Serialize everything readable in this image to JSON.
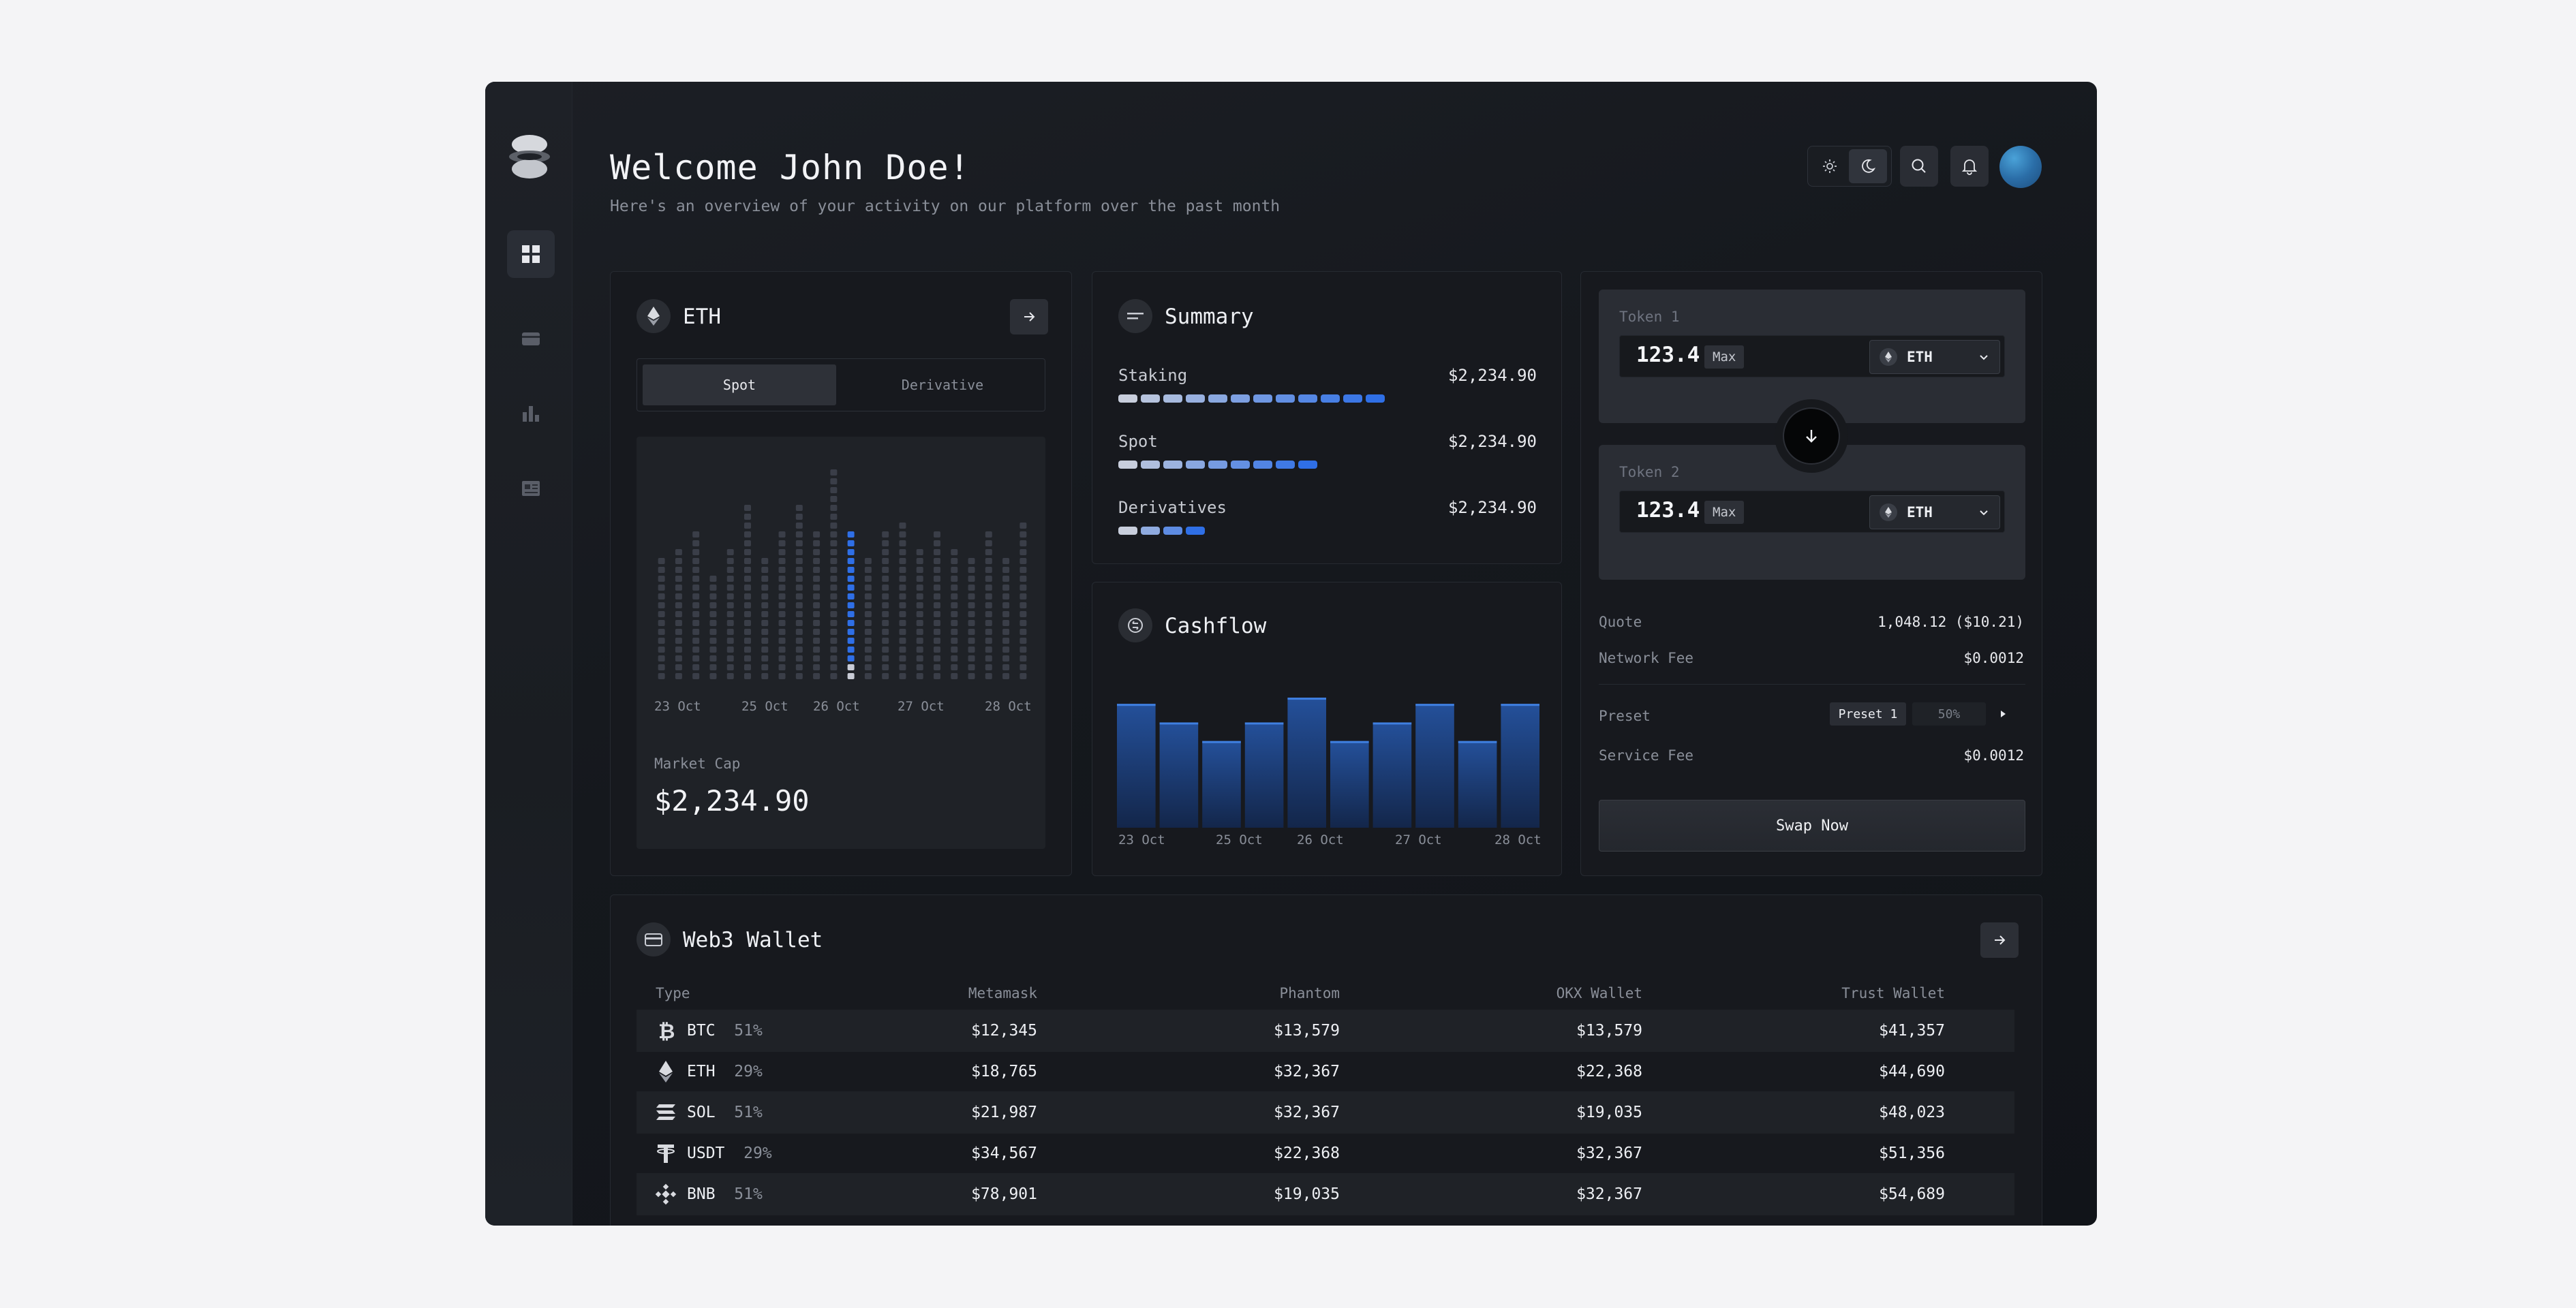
{
  "header": {
    "title": "Welcome John Doe!",
    "subtitle": "Here's an overview of your activity on our platform over the past month"
  },
  "sidebar": {
    "items": [
      {
        "icon": "dashboard-grid-icon",
        "active": true
      },
      {
        "icon": "wallet-icon",
        "active": false
      },
      {
        "icon": "bar-chart-icon",
        "active": false
      },
      {
        "icon": "news-icon",
        "active": false
      }
    ]
  },
  "topbar": {
    "icons": [
      "sun-icon",
      "moon-icon",
      "search-icon",
      "bell-icon"
    ],
    "theme_selected": "dark"
  },
  "eth_card": {
    "title": "ETH",
    "tabs": [
      "Spot",
      "Derivative"
    ],
    "active_tab": "Spot",
    "market_cap_label": "Market Cap",
    "market_cap_value": "$2,234.90"
  },
  "summary": {
    "title": "Summary",
    "rows": [
      {
        "label": "Staking",
        "value": "$2,234.90",
        "filled": 12
      },
      {
        "label": "Spot",
        "value": "$2,234.90",
        "filled": 9
      },
      {
        "label": "Derivatives",
        "value": "$2,234.90",
        "filled": 4
      }
    ]
  },
  "cashflow": {
    "title": "Cashflow"
  },
  "swap": {
    "token1_label": "Token 1",
    "token2_label": "Token 2",
    "token1_amount": "123.4",
    "token2_amount": "123.4",
    "max_label": "Max",
    "token1_symbol": "ETH",
    "token2_symbol": "ETH",
    "quote_label": "Quote",
    "quote_value": "1,048.12 ($10.21)",
    "network_fee_label": "Network Fee",
    "network_fee_value": "$0.0012",
    "preset_label": "Preset",
    "preset_option": "Preset 1",
    "preset_percent": "50%",
    "service_fee_label": "Service Fee",
    "service_fee_value": "$0.0012",
    "button_label": "Swap Now"
  },
  "wallet": {
    "title": "Web3 Wallet",
    "columns": [
      "Type",
      "Metamask",
      "Phantom",
      "OKX Wallet",
      "Trust Wallet"
    ],
    "rows": [
      {
        "coin": "BTC",
        "pct": "51%",
        "icon": "bitcoin-icon",
        "metamask": "$12,345",
        "phantom": "$13,579",
        "okx": "$13,579",
        "trust": "$41,357"
      },
      {
        "coin": "ETH",
        "pct": "29%",
        "icon": "ethereum-icon",
        "metamask": "$18,765",
        "phantom": "$32,367",
        "okx": "$22,368",
        "trust": "$44,690"
      },
      {
        "coin": "SOL",
        "pct": "51%",
        "icon": "solana-icon",
        "metamask": "$21,987",
        "phantom": "$32,367",
        "okx": "$19,035",
        "trust": "$48,023"
      },
      {
        "coin": "USDT",
        "pct": "29%",
        "icon": "tether-icon",
        "metamask": "$34,567",
        "phantom": "$22,368",
        "okx": "$32,367",
        "trust": "$51,356"
      },
      {
        "coin": "BNB",
        "pct": "51%",
        "icon": "bnb-icon",
        "metamask": "$78,901",
        "phantom": "$19,035",
        "okx": "$32,367",
        "trust": "$54,689"
      }
    ]
  },
  "colors": {
    "accent_blue": "#2f6fe6",
    "bar_gray": "#3a3e48",
    "cashflow_bar": "#1c3f7a"
  },
  "chart_data": [
    {
      "type": "bar",
      "x_ticks": [
        "23 Oct",
        "25 Oct",
        "26 Oct",
        "27 Oct",
        "28 Oct"
      ],
      "values": [
        9,
        10,
        11,
        8,
        10,
        13,
        9,
        11,
        13,
        11,
        16,
        11,
        9,
        11,
        12,
        10,
        11,
        10,
        9,
        11,
        9,
        12
      ],
      "highlight_index": 11,
      "ylim": [
        0,
        16
      ]
    },
    {
      "type": "bar",
      "x_ticks": [
        "23 Oct",
        "25 Oct",
        "26 Oct",
        "27 Oct",
        "28 Oct"
      ],
      "values": [
        10,
        8.5,
        7,
        8.5,
        10.5,
        7,
        8.5,
        10,
        7,
        10
      ],
      "ylim": [
        0,
        11
      ]
    }
  ]
}
